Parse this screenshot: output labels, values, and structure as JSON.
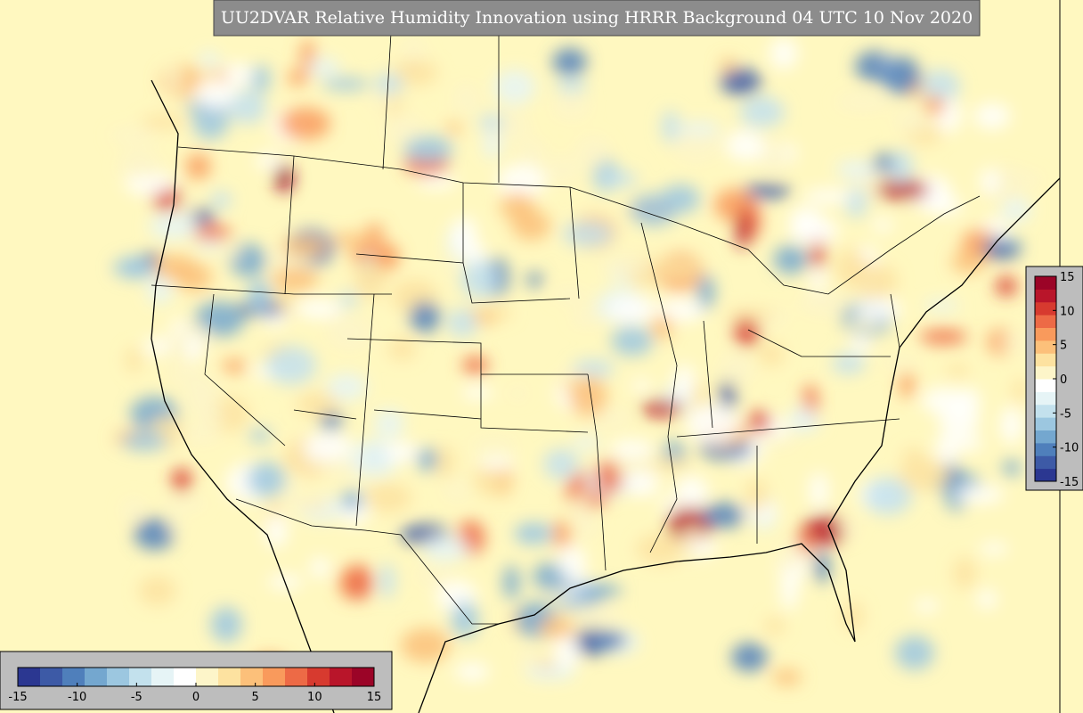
{
  "title": "UU2DVAR Relative Humidity Innovation using HRRR Background 04 UTC 10 Nov 2020",
  "colorbars": [
    {
      "orientation": "horizontal",
      "range": [
        -15,
        15
      ],
      "ticks": [
        -15,
        -10,
        -5,
        0,
        5,
        10,
        15
      ],
      "colors": [
        "#2b3791",
        "#3d5aa6",
        "#4f7fbb",
        "#74a7cf",
        "#9cc7e0",
        "#c3e1ed",
        "#e6f4f6",
        "#ffffff",
        "#fdf5c9",
        "#fde2a0",
        "#fcc07a",
        "#f99a5c",
        "#ed6a46",
        "#d73a2f",
        "#b9152a",
        "#9b0427"
      ]
    },
    {
      "orientation": "vertical",
      "range": [
        -15,
        15
      ],
      "ticks": [
        -15,
        -10,
        -5,
        0,
        5,
        10,
        15
      ],
      "colors": [
        "#2b3791",
        "#3d5aa6",
        "#4f7fbb",
        "#74a7cf",
        "#9cc7e0",
        "#c3e1ed",
        "#e6f4f6",
        "#ffffff",
        "#fdf5c9",
        "#fde2a0",
        "#fcc07a",
        "#f99a5c",
        "#ed6a46",
        "#d73a2f",
        "#b9152a",
        "#9b0427"
      ]
    }
  ]
}
